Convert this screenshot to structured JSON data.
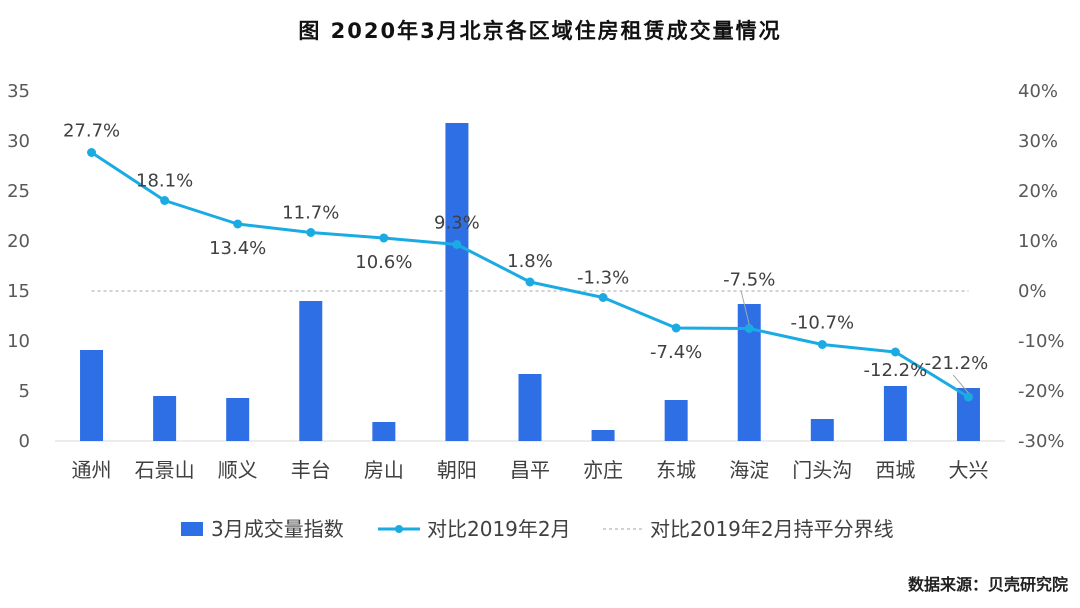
{
  "chart_data": {
    "type": "bar+line",
    "title": "图 2020年3月北京各区域住房租赁成交量情况",
    "categories": [
      "通州",
      "石景山",
      "顺义",
      "丰台",
      "房山",
      "朝阳",
      "昌平",
      "亦庄",
      "东城",
      "海淀",
      "门头沟",
      "西城",
      "大兴"
    ],
    "series": [
      {
        "name": "3月成交量指数",
        "type": "bar",
        "axis": "left",
        "color": "#2f6fe6",
        "values": [
          9.1,
          4.5,
          4.3,
          14.0,
          1.9,
          31.8,
          6.7,
          1.1,
          4.1,
          13.7,
          2.2,
          5.5,
          5.3
        ]
      },
      {
        "name": "对比2019年2月",
        "type": "line",
        "axis": "right",
        "color": "#1aabe3",
        "values": [
          27.7,
          18.1,
          13.4,
          11.7,
          10.6,
          9.3,
          1.8,
          -1.3,
          -7.4,
          -7.5,
          -10.7,
          -12.2,
          -21.2
        ],
        "labels": [
          "27.7%",
          "18.1%",
          "13.4%",
          "11.7%",
          "10.6%",
          "9.3%",
          "1.8%",
          "-1.3%",
          "-7.4%",
          "-7.5%",
          "-10.7%",
          "-12.2%",
          "-21.2%"
        ]
      },
      {
        "name": "对比2019年2月持平分界线",
        "type": "reference-line",
        "axis": "right",
        "value": 0,
        "color": "#a6a6a6"
      }
    ],
    "y_left": {
      "min": 0,
      "max": 35,
      "step": 5,
      "ticks": [
        "0",
        "5",
        "10",
        "15",
        "20",
        "25",
        "30",
        "35"
      ]
    },
    "y_right": {
      "min": -30,
      "max": 40,
      "step": 10,
      "ticks": [
        "-30%",
        "-20%",
        "-10%",
        "0%",
        "10%",
        "20%",
        "30%",
        "40%"
      ]
    },
    "legend_position": "bottom"
  },
  "source": "数据来源：贝壳研究院"
}
